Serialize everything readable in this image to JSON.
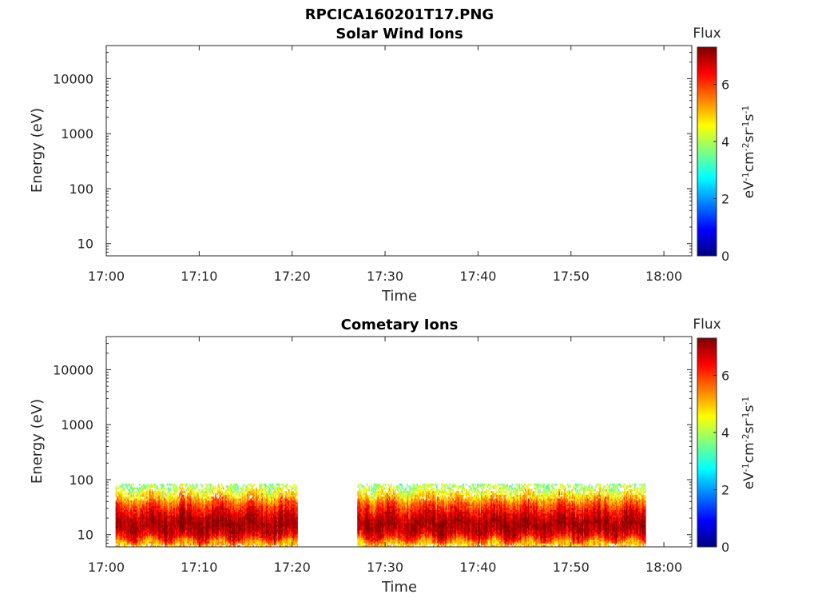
{
  "figure": {
    "filename": "RPCICA160201T17.PNG"
  },
  "chart_data": [
    {
      "type": "heatmap",
      "title": "Solar Wind Ions",
      "xlabel": "Time",
      "ylabel": "Energy (eV)",
      "x_ticks": [
        "17:00",
        "17:10",
        "17:20",
        "17:30",
        "17:40",
        "17:50",
        "18:00"
      ],
      "x_range": [
        "17:00",
        "18:03"
      ],
      "y_scale": "log",
      "y_range": [
        6,
        40000
      ],
      "y_ticks": [
        10,
        100,
        1000,
        10000
      ],
      "y_tick_labels": [
        "10",
        "100",
        "1000",
        "10000"
      ],
      "colorbar": {
        "title": "Flux",
        "label": "eV-1cm-2sr-1s-1",
        "range": [
          0,
          7.3
        ],
        "ticks": [
          0,
          2,
          4,
          6
        ],
        "tick_labels": [
          "0",
          "2",
          "4",
          "6"
        ]
      },
      "data_intervals": []
    },
    {
      "type": "heatmap",
      "title": "Cometary Ions",
      "xlabel": "Time",
      "ylabel": "Energy (eV)",
      "x_ticks": [
        "17:00",
        "17:10",
        "17:20",
        "17:30",
        "17:40",
        "17:50",
        "18:00"
      ],
      "x_range": [
        "17:00",
        "18:03"
      ],
      "y_scale": "log",
      "y_range": [
        6,
        40000
      ],
      "y_ticks": [
        10,
        100,
        1000,
        10000
      ],
      "y_tick_labels": [
        "10",
        "100",
        "1000",
        "10000"
      ],
      "colorbar": {
        "title": "Flux",
        "label": "eV-1cm-2sr-1s-1",
        "range": [
          0,
          7.3
        ],
        "ticks": [
          0,
          2,
          4,
          6
        ],
        "tick_labels": [
          "0",
          "2",
          "4",
          "6"
        ]
      },
      "data_intervals": [
        {
          "start": "17:01",
          "end": "17:20.5"
        },
        {
          "start": "17:27",
          "end": "17:58"
        }
      ],
      "energy_profile": [
        {
          "energy": 7,
          "flux": 5.0
        },
        {
          "energy": 9,
          "flux": 6.3
        },
        {
          "energy": 12,
          "flux": 6.9
        },
        {
          "energy": 16,
          "flux": 7.1
        },
        {
          "energy": 21,
          "flux": 6.8
        },
        {
          "energy": 28,
          "flux": 6.3
        },
        {
          "energy": 37,
          "flux": 5.7
        },
        {
          "energy": 49,
          "flux": 5.0
        },
        {
          "energy": 65,
          "flux": 4.3
        },
        {
          "energy": 82,
          "flux": 3.7
        }
      ]
    }
  ],
  "colors": {
    "colormap": "jet",
    "colormap_stops": [
      "#00007f",
      "#0000ff",
      "#007fff",
      "#00ffff",
      "#7fff7f",
      "#ffff00",
      "#ff7f00",
      "#ff0000",
      "#7f0000"
    ],
    "axis": "#262626",
    "background": "#ffffff"
  }
}
